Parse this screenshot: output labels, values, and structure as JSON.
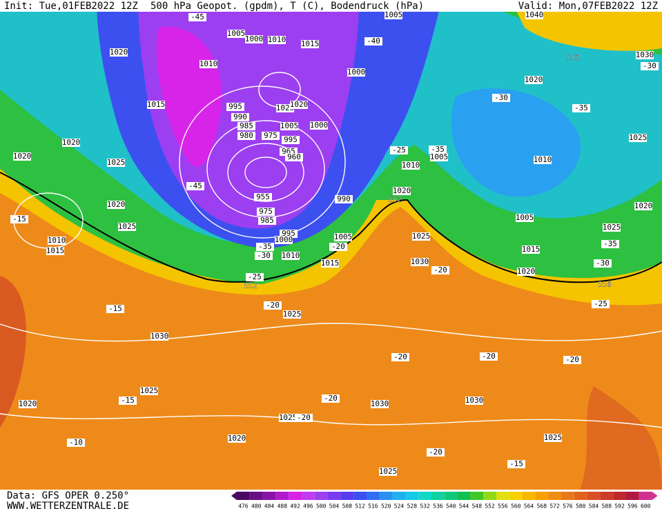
{
  "header": {
    "init": "Init: Tue,01FEB2022 12Z",
    "title": "500 hPa Geopot. (gpdm), T (C), Bodendruck (hPa)",
    "valid": "Valid: Mon,07FEB2022 12Z"
  },
  "footer": {
    "data": "Data: GFS OPER 0.250°",
    "site": "WWW.WETTERZENTRALE.DE"
  },
  "colorbar": {
    "levels": [
      476,
      480,
      484,
      488,
      492,
      496,
      500,
      504,
      508,
      512,
      516,
      520,
      524,
      528,
      532,
      536,
      540,
      544,
      548,
      552,
      556,
      560,
      564,
      568,
      572,
      576,
      580,
      584,
      588,
      592,
      596,
      600
    ],
    "colors": [
      "#4b0a5f",
      "#6a0f86",
      "#8b12a8",
      "#b01ccb",
      "#d824e8",
      "#c23cf0",
      "#9c3ff0",
      "#7a3cf0",
      "#5a3cf0",
      "#3c50f0",
      "#2f6ef0",
      "#2a90f0",
      "#20b0f0",
      "#18c8e8",
      "#10d8c8",
      "#10d0a0",
      "#10c878",
      "#10c050",
      "#40c828",
      "#90d818",
      "#e0e010",
      "#f8d000",
      "#f8b800",
      "#f8a000",
      "#f08c10",
      "#e87818",
      "#e06420",
      "#d85024",
      "#cc3c28",
      "#c0282c",
      "#b01a40",
      "#d03090"
    ]
  },
  "map": {
    "pressure_labels": [
      1020,
      1005,
      1000,
      1010,
      1015,
      1010,
      1000,
      1015,
      995,
      1025,
      1020,
      990,
      985,
      1005,
      1000,
      980,
      975,
      995,
      1020,
      1020,
      1025,
      965,
      960,
      955,
      990,
      1020,
      1025,
      1010,
      1015,
      975,
      985,
      995,
      1000,
      1005,
      1010,
      1015,
      1025,
      1030,
      1025,
      1020,
      1025,
      1020,
      1025,
      1030,
      1030,
      1025,
      1020,
      1030,
      1025,
      1010,
      1005,
      1010,
      1020,
      1005,
      1025,
      1030,
      1015,
      1020,
      1020,
      1025,
      1005,
      1040
    ],
    "temperature_labels": [
      -45,
      -40,
      -45,
      -30,
      -35,
      -25,
      -35,
      -15,
      -35,
      -30,
      -20,
      -25,
      -20,
      -15,
      -20,
      -25,
      -35,
      -30,
      -20,
      -20,
      -20,
      -20,
      -15,
      -20,
      -10,
      -20,
      -15,
      -30
    ],
    "geopotential_labels": [
      552,
      552,
      552,
      558
    ]
  }
}
